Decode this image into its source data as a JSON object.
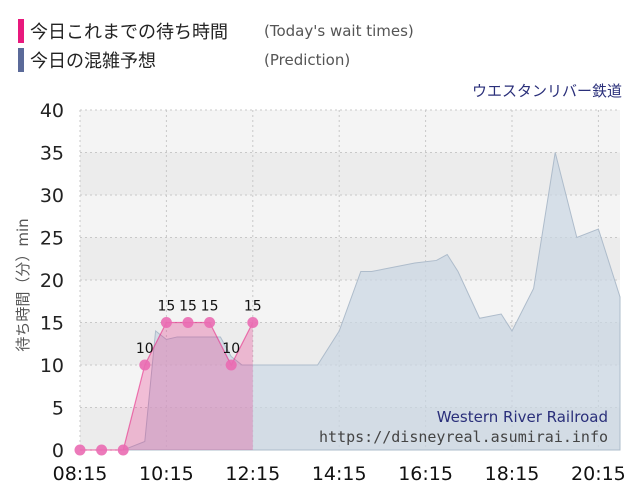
{
  "legend": {
    "today": {
      "label": "今日これまでの待ち時間",
      "note": "(Today's wait times)",
      "color": "#e8197d"
    },
    "prediction": {
      "label": "今日の混雑予想",
      "note": "(Prediction)",
      "color": "#5b6a99"
    }
  },
  "attraction_name": "ウエスタンリバー鉄道",
  "watermark": {
    "name": "Western River Railroad",
    "url": "https://disneyreal.asumirai.info"
  },
  "chart_data": {
    "type": "area",
    "ylabel": "待ち時間（分）min",
    "ylim": [
      0,
      40
    ],
    "yticks": [
      0,
      5,
      10,
      15,
      20,
      25,
      30,
      35,
      40
    ],
    "xlim": [
      "08:15",
      "20:45"
    ],
    "xticks": [
      "08:15",
      "10:15",
      "12:15",
      "14:15",
      "16:15",
      "18:15",
      "20:15"
    ],
    "grid": true,
    "series": [
      {
        "role": "prediction",
        "color": "#c9d6e2",
        "x": [
          "09:15",
          "09:45",
          "10:00",
          "10:15",
          "10:30",
          "11:00",
          "11:30",
          "11:45",
          "12:00",
          "12:15",
          "13:00",
          "13:45",
          "14:15",
          "14:45",
          "15:00",
          "15:30",
          "16:00",
          "16:30",
          "16:45",
          "17:00",
          "17:30",
          "18:00",
          "18:15",
          "18:45",
          "19:15",
          "19:45",
          "20:15",
          "20:45"
        ],
        "y": [
          0,
          1,
          14,
          13,
          13.3,
          13.3,
          13.3,
          11,
          10,
          10,
          10,
          10,
          14,
          21,
          21,
          21.5,
          22,
          22.3,
          23,
          21,
          15.5,
          16,
          14,
          19,
          35,
          25,
          26,
          18
        ]
      },
      {
        "role": "today",
        "color": "#e8197d",
        "x": [
          "08:15",
          "08:45",
          "09:15",
          "09:45",
          "10:15",
          "10:45",
          "11:15",
          "11:45",
          "12:15"
        ],
        "y": [
          0,
          0,
          0,
          10,
          15,
          15,
          15,
          10,
          15
        ],
        "labels": [
          "",
          "",
          "",
          "10",
          "15",
          "15",
          "15",
          "10",
          "15"
        ]
      }
    ]
  }
}
